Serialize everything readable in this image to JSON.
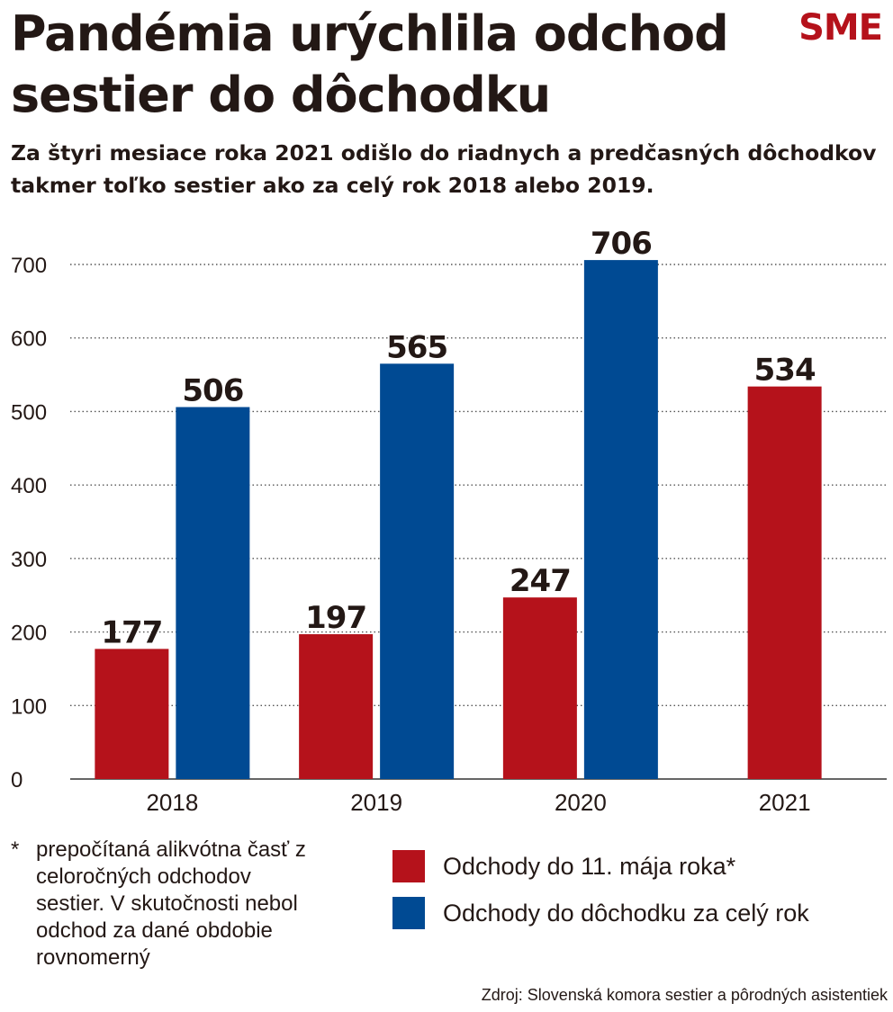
{
  "title": "Pandémia urýchlila odchod sestier do dôchodku",
  "logo": "SME",
  "subtitle": "Za štyri mesiace roka 2021 odišlo do riadnych a predčasných dôchodkov takmer toľko sestier ako za celý rok 2018 alebo 2019.",
  "footnote": {
    "marker": "*",
    "text": "prepočítaná alikvótna časť z celoročných odchodov sestier. V skutočnosti nebol odchod za dané obdobie rovnomerný"
  },
  "legend": [
    {
      "label": "Odchody do 11. mája roka*",
      "color": "#b5121b"
    },
    {
      "label": "Odchody do dôchodku za celý rok",
      "color": "#004a93"
    }
  ],
  "source": "Zdroj: Slovenská komora sestier a pôrodných asistentiek",
  "chart_data": {
    "type": "bar",
    "categories": [
      "2018",
      "2019",
      "2020",
      "2021"
    ],
    "series": [
      {
        "name": "Odchody do 11. mája roka*",
        "color": "#b5121b",
        "values": [
          177,
          197,
          247,
          534
        ]
      },
      {
        "name": "Odchody do dôchodku za celý rok",
        "color": "#004a93",
        "values": [
          506,
          565,
          706,
          null
        ]
      }
    ],
    "yticks": [
      0,
      100,
      200,
      300,
      400,
      500,
      600,
      700
    ],
    "ylim": [
      0,
      700
    ],
    "grid": true,
    "legend_position": "bottom"
  }
}
